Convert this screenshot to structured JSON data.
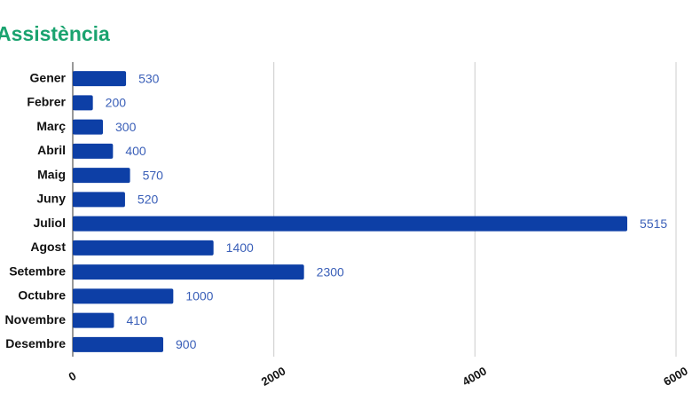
{
  "chart_data": {
    "type": "bar",
    "title": "Assistència",
    "categories": [
      "Gener",
      "Febrer",
      "Març",
      "Abril",
      "Maig",
      "Juny",
      "Juliol",
      "Agost",
      "Setembre",
      "Octubre",
      "Novembre",
      "Desembre"
    ],
    "values": [
      530,
      200,
      300,
      400,
      570,
      520,
      5515,
      1400,
      2300,
      1000,
      410,
      900
    ],
    "color": "#0d3fa6",
    "xlim": [
      0,
      6000
    ],
    "xticks": [
      0,
      2000,
      4000,
      6000
    ],
    "grid": true
  }
}
